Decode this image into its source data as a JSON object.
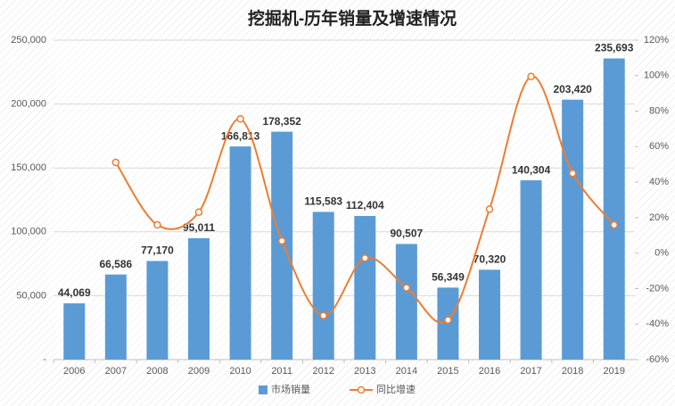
{
  "chart_data": {
    "type": "bar-line",
    "title": "挖掘机-历年销量及增速情况",
    "categories": [
      "2006",
      "2007",
      "2008",
      "2009",
      "2010",
      "2011",
      "2012",
      "2013",
      "2014",
      "2015",
      "2016",
      "2017",
      "2018",
      "2019"
    ],
    "series": [
      {
        "name": "市场销量",
        "type": "bar",
        "color": "#5b9bd5",
        "values": [
          44069,
          66586,
          77170,
          95011,
          166813,
          178352,
          115583,
          112404,
          90507,
          56349,
          70320,
          140304,
          203420,
          235693
        ],
        "value_labels": [
          "44,069",
          "66,586",
          "77,170",
          "95,011",
          "166,813",
          "178,352",
          "115,583",
          "112,404",
          "90,507",
          "56,349",
          "70,320",
          "140,304",
          "203,420",
          "235,693"
        ]
      },
      {
        "name": "同比增速",
        "type": "line",
        "color": "#ed7d31",
        "axis": "y2",
        "values": [
          null,
          51.1,
          15.9,
          23.1,
          75.6,
          6.9,
          -35.2,
          -2.8,
          -19.5,
          -37.7,
          24.8,
          99.5,
          45.0,
          15.9
        ]
      }
    ],
    "ylim": [
      0,
      250000
    ],
    "yticks": [
      {
        "value": 0,
        "label": "-"
      },
      {
        "value": 50000,
        "label": "50,000"
      },
      {
        "value": 100000,
        "label": "100,000"
      },
      {
        "value": 150000,
        "label": "150,000"
      },
      {
        "value": 200000,
        "label": "200,000"
      },
      {
        "value": 250000,
        "label": "250,000"
      }
    ],
    "y2lim": [
      -60,
      120
    ],
    "y2ticks": [
      {
        "value": -60,
        "label": "-60%"
      },
      {
        "value": -40,
        "label": "-40%"
      },
      {
        "value": -20,
        "label": "-20%"
      },
      {
        "value": 0,
        "label": "0%"
      },
      {
        "value": 20,
        "label": "20%"
      },
      {
        "value": 40,
        "label": "40%"
      },
      {
        "value": 60,
        "label": "60%"
      },
      {
        "value": 80,
        "label": "80%"
      },
      {
        "value": 100,
        "label": "100%"
      },
      {
        "value": 120,
        "label": "120%"
      }
    ],
    "grid": true,
    "legend": "bottom"
  }
}
